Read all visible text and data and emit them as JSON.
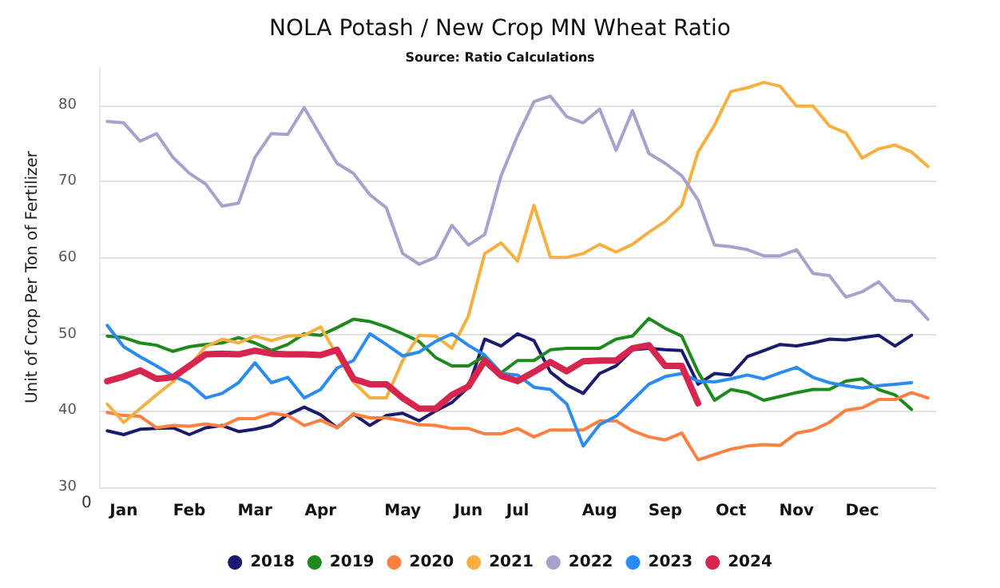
{
  "chart_data": {
    "type": "line",
    "title": "NOLA Potash / New Crop MN Wheat Ratio",
    "subtitle": "Source: Ratio Calculations",
    "ylabel": "Unit of Crop Per Ton of Fertilizer",
    "annotations": [
      "0"
    ],
    "categories": [
      null,
      "Jan",
      null,
      null,
      null,
      "Feb",
      null,
      null,
      null,
      "Mar",
      null,
      null,
      null,
      "Apr",
      null,
      null,
      null,
      null,
      "May",
      null,
      null,
      null,
      "Jun",
      null,
      null,
      "Jul",
      null,
      null,
      null,
      null,
      "Aug",
      null,
      null,
      null,
      "Sep",
      null,
      null,
      null,
      "Oct",
      null,
      null,
      null,
      "Nov",
      null,
      null,
      null,
      "Dec",
      null,
      null,
      null,
      null
    ],
    "series": [
      {
        "name": "2018",
        "color": "#1a1a6e",
        "values": [
          37.4,
          36.9,
          37.6,
          37.7,
          37.8,
          36.9,
          37.8,
          38.1,
          37.3,
          37.6,
          38.1,
          39.5,
          40.5,
          39.5,
          37.8,
          39.6,
          38.1,
          39.4,
          39.7,
          38.7,
          40.0,
          41.1,
          43.1,
          49.4,
          48.5,
          50.1,
          49.2,
          45.1,
          43.4,
          42.3,
          44.9,
          45.9,
          48.0,
          48.2,
          48.0,
          47.9,
          43.5,
          44.9,
          44.7,
          47.1,
          47.9,
          48.7,
          48.5,
          48.9,
          49.4,
          49.3,
          49.6,
          49.9,
          48.5,
          49.9,
          null
        ]
      },
      {
        "name": "2019",
        "color": "#1e8a1e",
        "values": [
          49.8,
          49.6,
          48.9,
          48.6,
          47.8,
          48.4,
          48.7,
          48.9,
          49.6,
          48.9,
          47.9,
          48.7,
          50.1,
          49.9,
          50.9,
          52.0,
          51.7,
          51.0,
          50.1,
          49.1,
          47.0,
          45.9,
          45.9,
          47.2,
          45.0,
          46.6,
          46.6,
          48.0,
          48.2,
          48.2,
          48.2,
          49.4,
          49.8,
          52.1,
          50.8,
          49.8,
          45.1,
          41.4,
          42.8,
          42.4,
          41.4,
          41.9,
          42.4,
          42.8,
          42.8,
          43.9,
          44.2,
          42.8,
          42.1,
          40.2,
          null
        ]
      },
      {
        "name": "2020",
        "color": "#ff8040",
        "values": [
          39.8,
          39.4,
          39.3,
          37.8,
          38.1,
          38.0,
          38.3,
          38.0,
          39.0,
          39.0,
          39.7,
          39.4,
          38.1,
          38.8,
          37.8,
          39.6,
          39.1,
          39.1,
          38.7,
          38.2,
          38.1,
          37.7,
          37.7,
          37.0,
          37.0,
          37.7,
          36.6,
          37.5,
          37.5,
          37.5,
          38.7,
          38.7,
          37.4,
          36.6,
          36.2,
          37.1,
          33.6,
          34.3,
          35.0,
          35.4,
          35.6,
          35.5,
          37.1,
          37.5,
          38.5,
          40.1,
          40.4,
          41.5,
          41.5,
          42.4,
          41.7
        ]
      },
      {
        "name": "2021",
        "color": "#f5b041",
        "values": [
          40.9,
          38.5,
          40.3,
          42.1,
          43.8,
          45.9,
          48.4,
          49.4,
          48.9,
          49.8,
          49.2,
          49.8,
          49.9,
          51.0,
          47.3,
          43.8,
          41.7,
          41.7,
          46.6,
          49.9,
          49.8,
          48.2,
          52.4,
          60.6,
          62.0,
          59.6,
          66.9,
          60.1,
          60.1,
          60.6,
          61.8,
          60.8,
          61.8,
          63.4,
          64.8,
          66.9,
          73.9,
          77.4,
          81.8,
          82.3,
          83.0,
          82.5,
          79.9,
          79.9,
          77.3,
          76.4,
          73.1,
          74.3,
          74.8,
          73.9,
          72.0
        ]
      },
      {
        "name": "2022",
        "color": "#a3a3cc",
        "values": [
          77.9,
          77.7,
          75.3,
          76.3,
          73.2,
          71.1,
          69.7,
          66.8,
          67.2,
          73.2,
          76.3,
          76.2,
          79.7,
          76.0,
          72.4,
          71.1,
          68.3,
          66.6,
          60.6,
          59.2,
          60.1,
          64.3,
          61.7,
          63.1,
          70.8,
          76.0,
          80.5,
          81.2,
          78.5,
          77.7,
          79.5,
          74.1,
          79.3,
          73.7,
          72.4,
          70.8,
          67.6,
          61.7,
          61.5,
          61.1,
          60.3,
          60.3,
          61.1,
          58.0,
          57.7,
          54.9,
          55.6,
          56.9,
          54.5,
          54.3,
          52.0
        ]
      },
      {
        "name": "2023",
        "color": "#2a8cf0",
        "values": [
          51.2,
          48.4,
          47.1,
          45.9,
          44.6,
          43.6,
          41.7,
          42.3,
          43.7,
          46.3,
          43.7,
          44.4,
          41.7,
          42.8,
          45.6,
          46.6,
          50.1,
          48.7,
          47.2,
          47.7,
          49.1,
          50.1,
          48.6,
          47.3,
          44.9,
          44.7,
          43.1,
          42.8,
          40.9,
          35.4,
          38.2,
          39.3,
          41.4,
          43.5,
          44.5,
          44.9,
          43.9,
          43.8,
          44.2,
          44.7,
          44.2,
          45.0,
          45.7,
          44.4,
          43.7,
          43.3,
          43.0,
          43.3,
          43.5,
          43.7,
          null
        ]
      },
      {
        "name": "2024",
        "color": "#d6254f",
        "values": [
          43.9,
          44.5,
          45.3,
          44.2,
          44.4,
          45.9,
          47.4,
          47.5,
          47.4,
          47.9,
          47.5,
          47.4,
          47.4,
          47.3,
          48.0,
          44.2,
          43.5,
          43.5,
          41.7,
          40.3,
          40.3,
          42.1,
          43.2,
          46.6,
          44.6,
          43.9,
          45.1,
          46.4,
          45.2,
          46.5,
          46.6,
          46.6,
          48.2,
          48.6,
          45.9,
          45.9,
          41.0,
          null,
          null,
          null,
          null,
          null,
          null,
          null,
          null,
          null,
          null,
          null,
          null,
          null,
          null
        ]
      }
    ],
    "ylim": [
      30,
      85
    ],
    "yticks": [
      30,
      40,
      50,
      60,
      70,
      80
    ],
    "grid": "y",
    "legend": "bottom",
    "marker": "none",
    "line_style": "solid"
  }
}
